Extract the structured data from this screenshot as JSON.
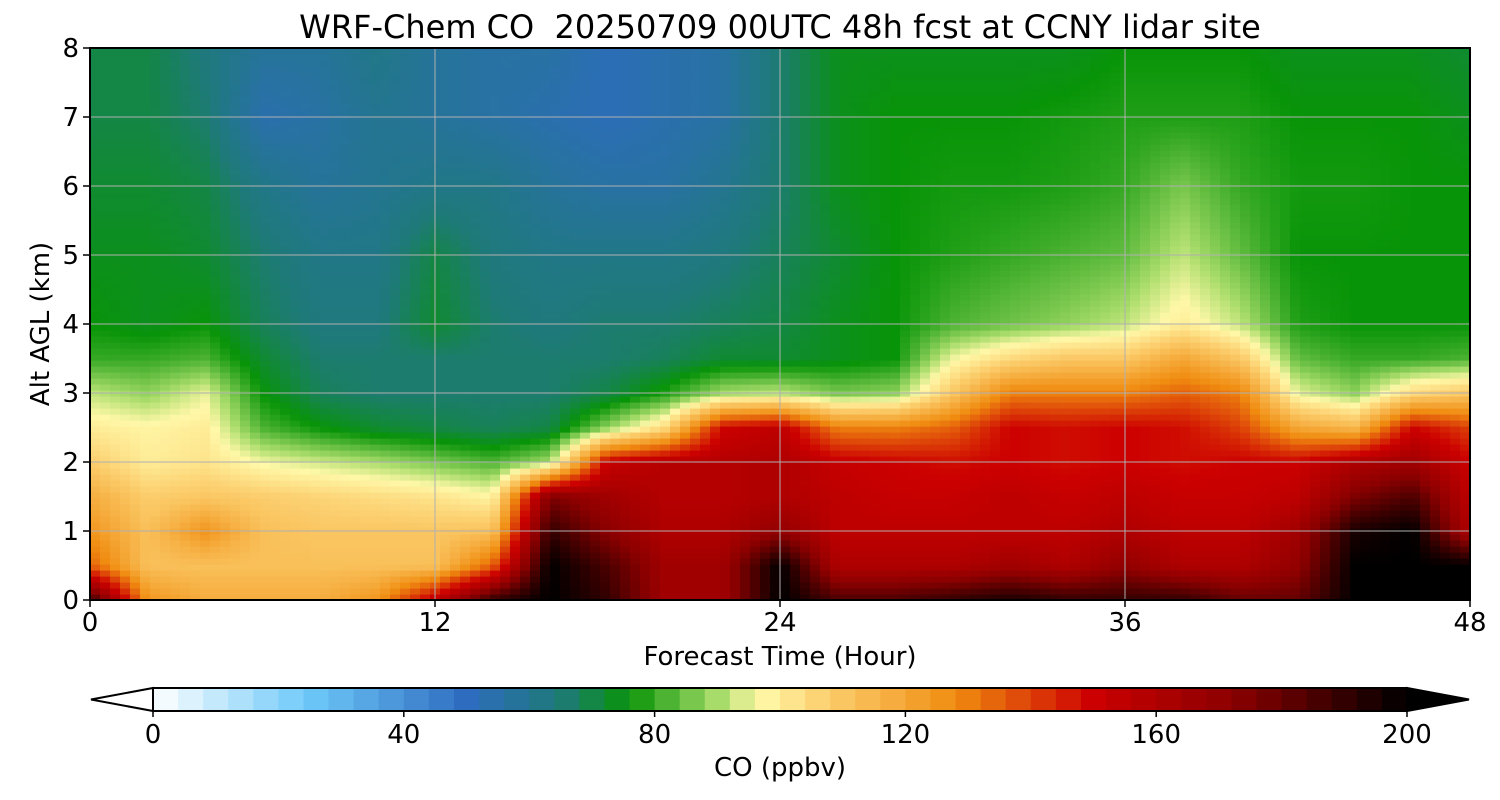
{
  "chart_data": {
    "type": "heatmap",
    "title": "WRF-Chem CO  20250709 00UTC 48h fcst at CCNY lidar site",
    "xlabel": "Forecast Time (Hour)",
    "ylabel": "Alt AGL (km)",
    "xlim": [
      0,
      48
    ],
    "ylim": [
      0,
      8
    ],
    "x_ticks": [
      0,
      12,
      24,
      36,
      48
    ],
    "x_tick_labels": [
      "0",
      "12",
      "24",
      "36",
      "48"
    ],
    "y_ticks": [
      0,
      1,
      2,
      3,
      4,
      5,
      6,
      7,
      8
    ],
    "y_tick_labels": [
      "0",
      "1",
      "2",
      "3",
      "4",
      "5",
      "6",
      "7",
      "8"
    ],
    "grid": true,
    "z_units": "ppbv",
    "colorbar": {
      "label": "CO  (ppbv)",
      "range": [
        0,
        200
      ],
      "ticks": [
        0,
        40,
        80,
        120,
        160,
        200
      ],
      "tick_labels": [
        "0",
        "40",
        "80",
        "120",
        "160",
        "200"
      ],
      "extend": "both",
      "stops": [
        {
          "value": 0,
          "color": "#ffffff"
        },
        {
          "value": 25,
          "color": "#6cc8f8"
        },
        {
          "value": 50,
          "color": "#2e6cc0"
        },
        {
          "value": 65,
          "color": "#1e7a78"
        },
        {
          "value": 76,
          "color": "#089408"
        },
        {
          "value": 90,
          "color": "#a8dc6a"
        },
        {
          "value": 97,
          "color": "#fff8a8"
        },
        {
          "value": 107,
          "color": "#fcd070"
        },
        {
          "value": 128,
          "color": "#f08c10"
        },
        {
          "value": 150,
          "color": "#cc0000"
        },
        {
          "value": 172,
          "color": "#8c0000"
        },
        {
          "value": 200,
          "color": "#000000"
        }
      ]
    },
    "heights_km": [
      0,
      0.5,
      1,
      1.5,
      2,
      2.5,
      3,
      3.5,
      4,
      5,
      6,
      7,
      8
    ],
    "times_hour": [
      0,
      2,
      4,
      6,
      8,
      10,
      12,
      14,
      16,
      18,
      20,
      22,
      24,
      26,
      28,
      30,
      32,
      34,
      36,
      38,
      40,
      42,
      44,
      46,
      48
    ],
    "values": [
      [
        190,
        125,
        118,
        118,
        118,
        125,
        155,
        190,
        200,
        190,
        165,
        165,
        200,
        185,
        185,
        190,
        195,
        190,
        190,
        190,
        180,
        180,
        200,
        200,
        200
      ],
      [
        135,
        112,
        112,
        112,
        112,
        112,
        112,
        135,
        200,
        185,
        165,
        165,
        200,
        160,
        160,
        160,
        165,
        160,
        170,
        160,
        160,
        170,
        200,
        200,
        200
      ],
      [
        125,
        112,
        125,
        112,
        110,
        110,
        110,
        112,
        190,
        172,
        160,
        160,
        170,
        155,
        155,
        155,
        155,
        155,
        160,
        155,
        155,
        165,
        195,
        200,
        160
      ],
      [
        118,
        108,
        110,
        108,
        106,
        104,
        102,
        98,
        175,
        165,
        158,
        158,
        160,
        155,
        152,
        152,
        155,
        152,
        155,
        152,
        152,
        155,
        175,
        185,
        155
      ],
      [
        108,
        100,
        102,
        96,
        93,
        90,
        86,
        82,
        90,
        152,
        158,
        158,
        160,
        152,
        150,
        148,
        150,
        148,
        150,
        148,
        150,
        150,
        160,
        165,
        150
      ],
      [
        100,
        98,
        100,
        82,
        76,
        72,
        70,
        68,
        70,
        88,
        105,
        150,
        155,
        130,
        130,
        135,
        150,
        148,
        150,
        148,
        140,
        120,
        115,
        150,
        140
      ],
      [
        92,
        88,
        95,
        76,
        68,
        66,
        66,
        66,
        66,
        70,
        78,
        90,
        92,
        86,
        88,
        110,
        130,
        130,
        130,
        135,
        130,
        95,
        88,
        105,
        110
      ],
      [
        80,
        80,
        82,
        72,
        66,
        66,
        66,
        66,
        66,
        66,
        68,
        72,
        72,
        74,
        76,
        96,
        105,
        110,
        110,
        120,
        110,
        84,
        80,
        80,
        82
      ],
      [
        76,
        74,
        76,
        68,
        64,
        64,
        72,
        66,
        64,
        66,
        66,
        68,
        70,
        74,
        76,
        82,
        85,
        88,
        92,
        100,
        92,
        78,
        76,
        76,
        76
      ],
      [
        74,
        74,
        72,
        66,
        62,
        62,
        70,
        64,
        62,
        62,
        62,
        64,
        68,
        72,
        76,
        78,
        80,
        82,
        84,
        92,
        84,
        76,
        76,
        76,
        76
      ],
      [
        72,
        72,
        70,
        62,
        58,
        60,
        62,
        62,
        58,
        56,
        56,
        60,
        66,
        74,
        76,
        77,
        77,
        78,
        80,
        86,
        80,
        77,
        77,
        76,
        76
      ],
      [
        70,
        70,
        66,
        54,
        56,
        60,
        58,
        56,
        54,
        52,
        54,
        56,
        66,
        74,
        76,
        76,
        76,
        77,
        78,
        78,
        78,
        76,
        76,
        76,
        74
      ],
      [
        70,
        70,
        64,
        58,
        58,
        62,
        58,
        56,
        56,
        52,
        54,
        56,
        66,
        74,
        74,
        74,
        74,
        74,
        76,
        76,
        76,
        74,
        74,
        74,
        72
      ]
    ]
  }
}
